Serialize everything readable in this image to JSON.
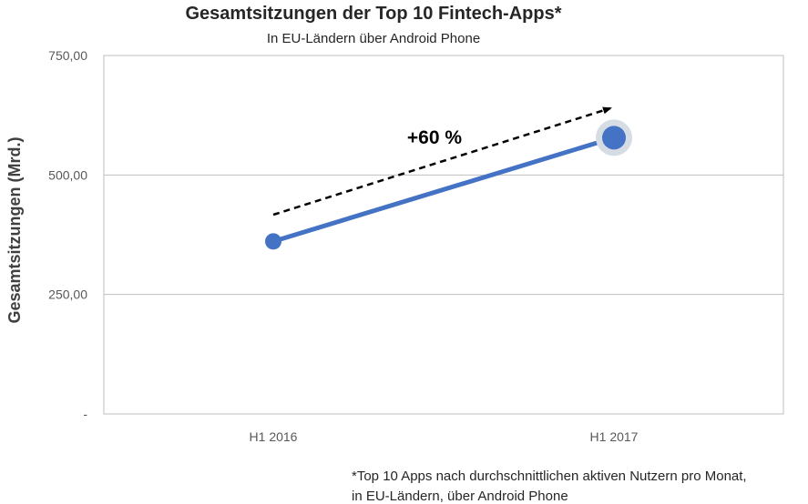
{
  "chart_data": {
    "type": "line",
    "title": "Gesamtsitzungen der Top 10 Fintech-Apps*",
    "subtitle": "In EU-Ländern  über Android Phone",
    "xlabel": "",
    "ylabel": "Gesamtsitzungen (Mrd.)",
    "categories": [
      "H1 2016",
      "H1 2017"
    ],
    "series": [
      {
        "values": [
          361,
          578
        ]
      }
    ],
    "ylim": [
      0,
      750
    ],
    "yticks": [
      0,
      250,
      500,
      750
    ],
    "ytick_labels": [
      "-",
      "250,00",
      "500,00",
      "750,00"
    ],
    "grid": true,
    "annotation": "+60 %",
    "footnote": [
      "*Top 10 Apps nach durchschnittlichen aktiven Nutzern pro Monat,",
      "in EU-Ländern, über Android Phone"
    ],
    "colors": {
      "line": "#4472c4",
      "highlight": "#d6dce4",
      "grid": "#bfbfbf",
      "arrow": "#000000"
    }
  }
}
